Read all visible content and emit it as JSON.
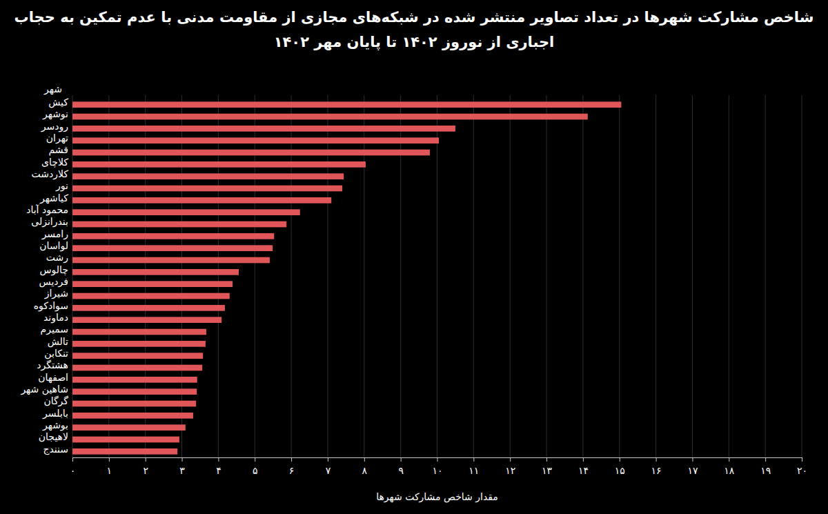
{
  "chart_data": {
    "type": "bar",
    "orientation": "horizontal",
    "title": "شاخص مشارکت شهرها در تعداد تصاویر منتشر شده در شبکه‌های مجازی از مقاومت مدنی با عدم تمکین به حجاب اجباری از نوروز ۱۴۰۲ تا پایان مهر ۱۴۰۲",
    "y_label": "شهر",
    "x_label": "مقدار شاخص مشارکت شهرها",
    "categories": [
      "کیش",
      "نوشهر",
      "رودسر",
      "تهران",
      "قشم",
      "کلاچای",
      "کلاردشت",
      "نور",
      "کیاشهر",
      "محمود آباد",
      "بندرانزلی",
      "رامسر",
      "لواسان",
      "رشت",
      "چالوس",
      "فردیس",
      "شیراز",
      "سوادکوه",
      "دماوند",
      "سمیرم",
      "تالش",
      "تنکابن",
      "هشتگرد",
      "اصفهان",
      "شاهین شهر",
      "گرگان",
      "بابلسر",
      "بوشهر",
      "لاهیجان",
      "سنندج"
    ],
    "values": [
      15.05,
      14.13,
      10.5,
      10.05,
      9.8,
      8.04,
      7.44,
      7.4,
      7.1,
      6.24,
      5.87,
      5.53,
      5.49,
      5.41,
      4.56,
      4.39,
      4.31,
      4.18,
      4.09,
      3.67,
      3.65,
      3.58,
      3.56,
      3.42,
      3.41,
      3.39,
      3.31,
      3.1,
      2.93,
      2.88
    ],
    "color": "#e15759",
    "xlim": [
      0,
      20
    ],
    "xticks": [
      {
        "value": 0,
        "label": "۰"
      },
      {
        "value": 1,
        "label": "۱"
      },
      {
        "value": 2,
        "label": "۲"
      },
      {
        "value": 3,
        "label": "۳"
      },
      {
        "value": 4,
        "label": "۴"
      },
      {
        "value": 5,
        "label": "۵"
      },
      {
        "value": 6,
        "label": "۶"
      },
      {
        "value": 7,
        "label": "۷"
      },
      {
        "value": 8,
        "label": "۸"
      },
      {
        "value": 9,
        "label": "۹"
      },
      {
        "value": 10,
        "label": "۱۰"
      },
      {
        "value": 11,
        "label": "۱۱"
      },
      {
        "value": 12,
        "label": "۱۲"
      },
      {
        "value": 13,
        "label": "۱۳"
      },
      {
        "value": 14,
        "label": "۱۴"
      },
      {
        "value": 15,
        "label": "۱۵"
      },
      {
        "value": 16,
        "label": "۱۶"
      },
      {
        "value": 17,
        "label": "۱۷"
      },
      {
        "value": 18,
        "label": "۱۸"
      },
      {
        "value": 19,
        "label": "۱۹"
      },
      {
        "value": 20,
        "label": "۲۰"
      }
    ],
    "grid": true
  }
}
